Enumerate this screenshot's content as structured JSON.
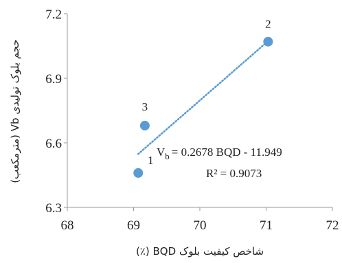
{
  "chart_data": {
    "type": "scatter",
    "xlabel": "شاخص کیفیت بلوک BQD (٪)",
    "ylabel": "حجم بلوک تولیدی Vb (مترمکعب)",
    "xlim": [
      68,
      72
    ],
    "ylim": [
      6.3,
      7.2
    ],
    "xticks": [
      "68",
      "69",
      "70",
      "71",
      "72"
    ],
    "yticks": [
      "6.3",
      "6.6",
      "6.9",
      "7.2"
    ],
    "grid": false,
    "points": [
      {
        "label": "1",
        "x": 69.07,
        "y": 6.46
      },
      {
        "label": "2",
        "x": 71.03,
        "y": 7.07
      },
      {
        "label": "3",
        "x": 69.17,
        "y": 6.68
      }
    ],
    "trendline": {
      "slope": 0.2678,
      "intercept": -11.949,
      "x_range": [
        69.07,
        71.03
      ],
      "style": "dotted"
    },
    "equation_text": "= 0.2678 BQD - 11.949",
    "equation_symbol": "V",
    "equation_subscript": "b",
    "r2_text": "R² = 0.9073",
    "colors": {
      "points": "#5b9bd5",
      "trendline": "#5b9bd5",
      "axis": "#999999"
    }
  }
}
